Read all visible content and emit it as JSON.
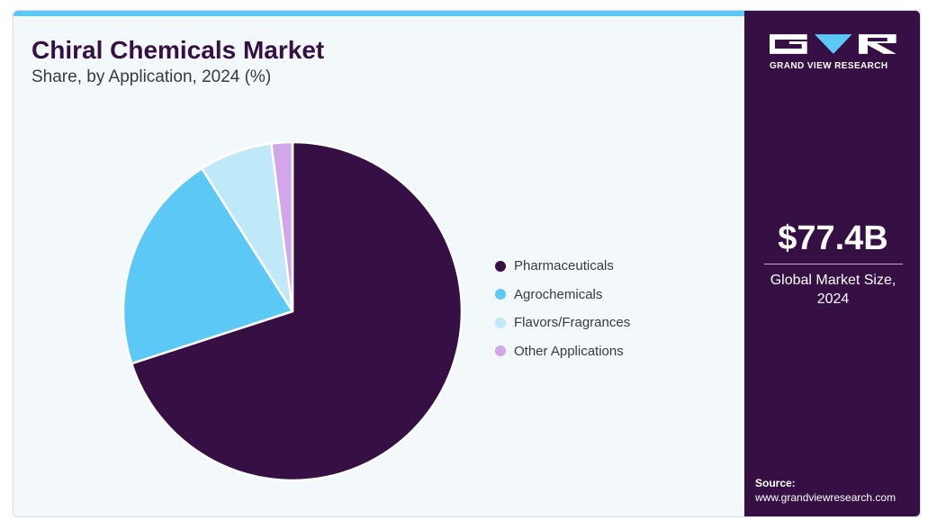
{
  "header": {
    "title": "Chiral Chemicals Market",
    "subtitle": "Share, by Application, 2024 (%)"
  },
  "chart_data": {
    "type": "pie",
    "categories": [
      "Pharmaceuticals",
      "Agrochemicals",
      "Flavors/Fragrances",
      "Other Applications"
    ],
    "values": [
      70,
      21,
      7,
      2
    ],
    "colors": [
      "#361045",
      "#5bc8f5",
      "#bfe8f8",
      "#d3a6ea"
    ],
    "legend": "right"
  },
  "sidebar": {
    "brand": "GRAND VIEW RESEARCH",
    "market_size": "$77.4B",
    "market_size_label_line1": "Global Market Size,",
    "market_size_label_line2": "2024",
    "source_label": "Source:",
    "source_url": "www.grandviewresearch.com"
  }
}
